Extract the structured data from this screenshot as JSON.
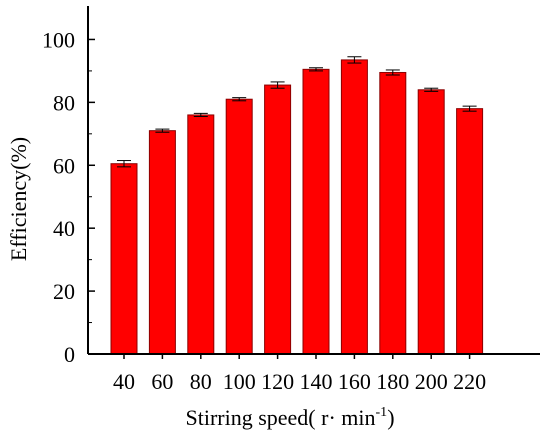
{
  "chart_data": {
    "type": "bar",
    "xlabel_main": "Stirring speed( r· min",
    "xlabel_sup": "-1",
    "xlabel_tail": ")",
    "ylabel": "Efficiency(%)",
    "categories": [
      "40",
      "60",
      "80",
      "100",
      "120",
      "140",
      "160",
      "180",
      "200",
      "220"
    ],
    "values": [
      60.5,
      71,
      76,
      81,
      85.5,
      90.5,
      93.5,
      89.5,
      84,
      78
    ],
    "errors": [
      1.0,
      0.5,
      0.5,
      0.5,
      1.0,
      0.5,
      1.0,
      0.8,
      0.5,
      0.8
    ],
    "ylim": [
      0,
      110
    ],
    "yticks": [
      0,
      20,
      40,
      60,
      80,
      100
    ],
    "grid": false,
    "bar_color": "#ff0000",
    "bar_edge_color": "#8b0000"
  }
}
